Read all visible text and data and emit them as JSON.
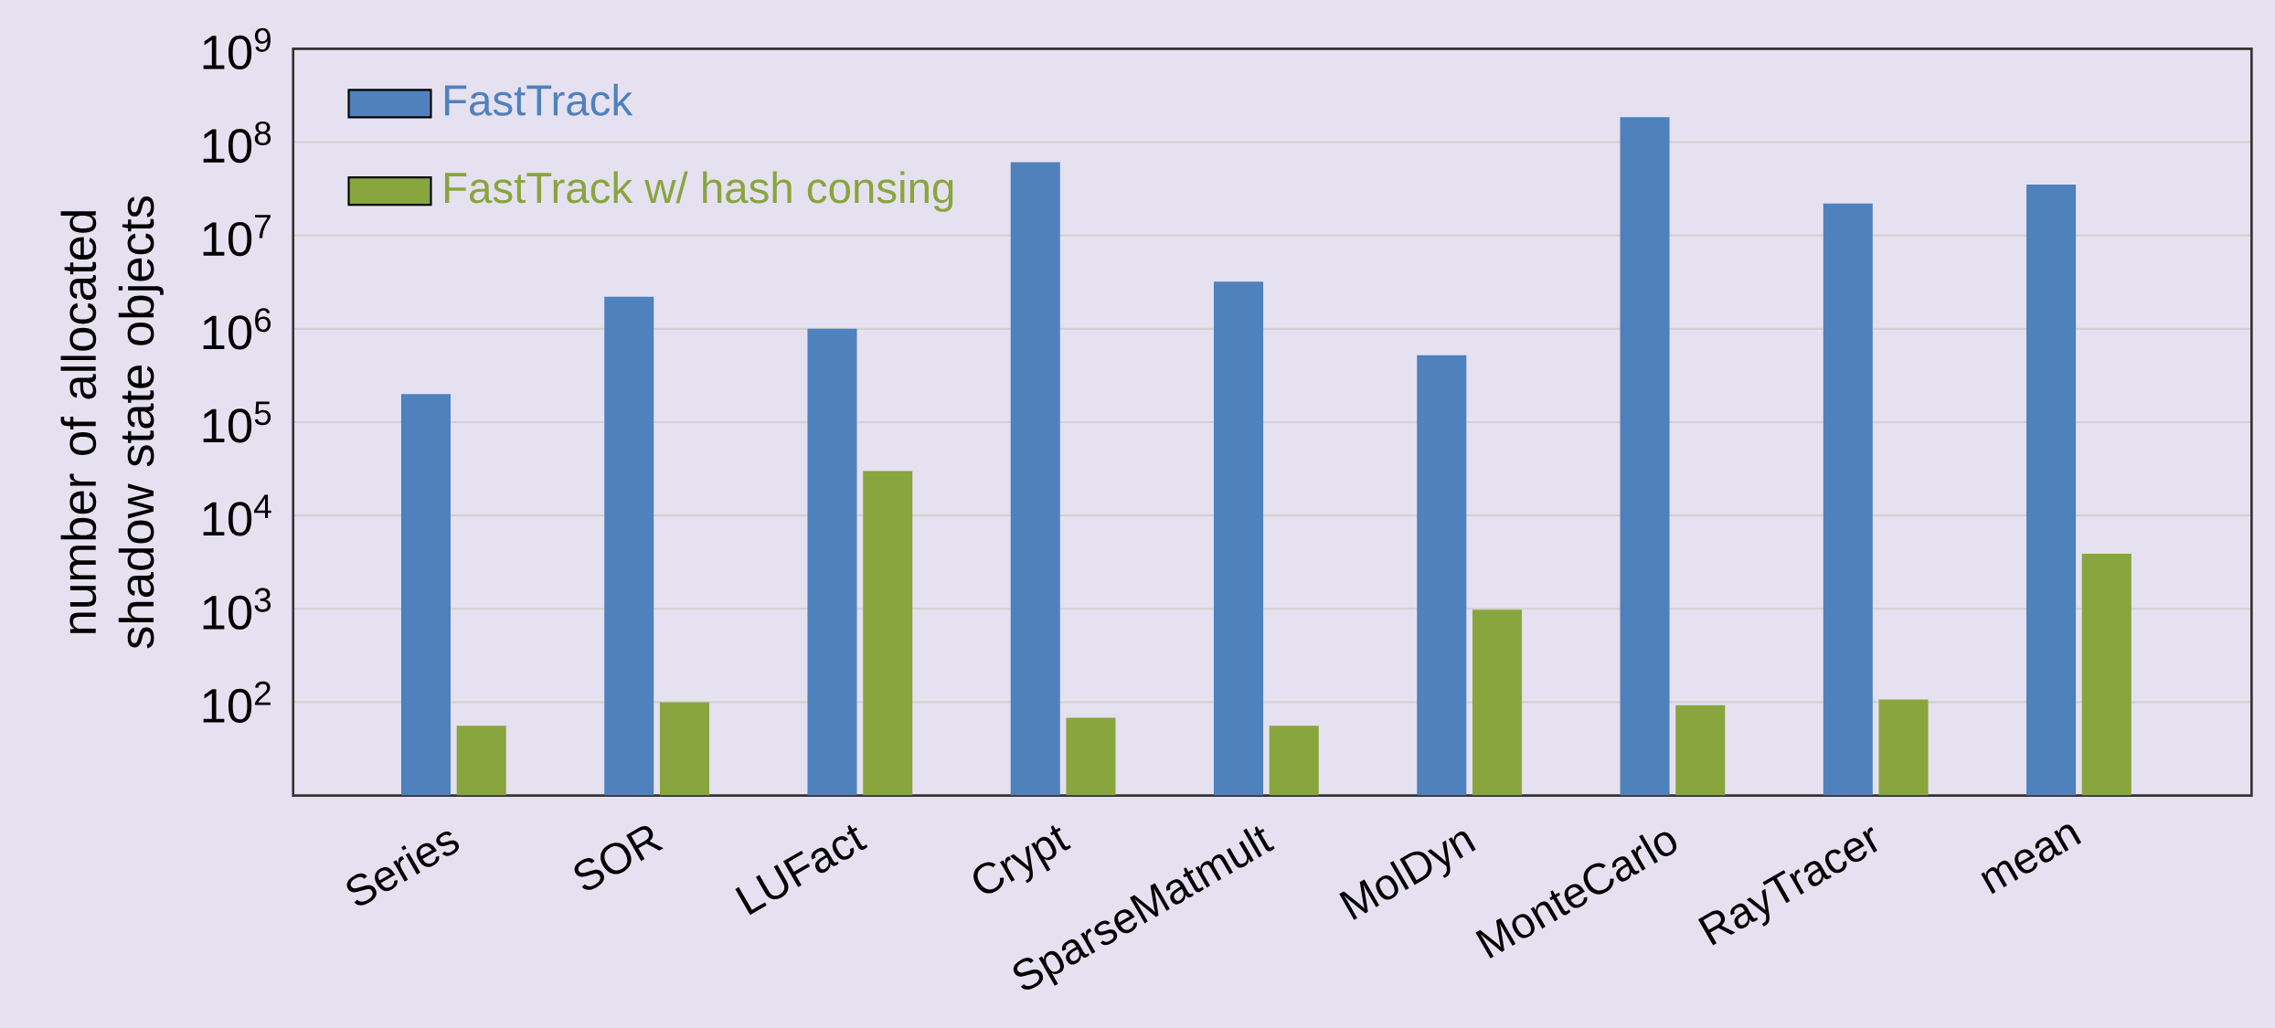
{
  "chart_data": {
    "type": "bar",
    "ylabel": "number of allocated\nshadow state objects",
    "log": true,
    "categories": [
      "Series",
      "SOR",
      "LUFact",
      "Crypt",
      "SparseMatmult",
      "MolDyn",
      "MonteCarlo",
      "RayTracer",
      "mean"
    ],
    "series": [
      {
        "name": "FastTrack",
        "color": "#4f81bd",
        "values": [
          200000,
          2200000,
          1000000,
          61000000,
          3200000,
          520000,
          185000000,
          22000000,
          35000000
        ]
      },
      {
        "name": "FastTrack w/ hash consing",
        "color": "#89a53d",
        "values": [
          56,
          100,
          30000,
          68,
          56,
          980,
          93,
          107,
          3900
        ]
      }
    ],
    "ylim": [
      10,
      1000000000
    ],
    "yticks": [
      {
        "value": 100,
        "label": "10$^{2}$"
      },
      {
        "value": 1000,
        "label": "10$^{3}$"
      },
      {
        "value": 10000,
        "label": "10$^{4}$"
      },
      {
        "value": 100000,
        "label": "10$^{5}$"
      },
      {
        "value": 1000000,
        "label": "10$^{6}$"
      },
      {
        "value": 10000000,
        "label": "10$^{7}$"
      },
      {
        "value": 100000000,
        "label": "10$^{8}$"
      },
      {
        "value": 1000000000,
        "label": "10$^{9}$"
      }
    ],
    "grid": "y",
    "legend": "top left"
  }
}
